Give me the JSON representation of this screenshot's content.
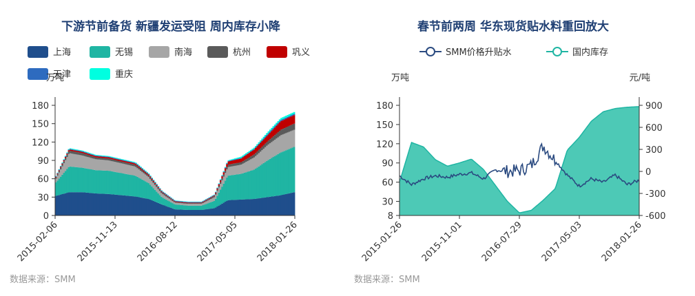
{
  "source_text": "数据来源：SMM",
  "chart_data": [
    {
      "type": "area",
      "stacked": true,
      "title": "下游节前备货 新疆发运受阻 周内库存小降",
      "y_unit": "万吨",
      "ylim": [
        0,
        180
      ],
      "y_ticks": [
        "0",
        "30",
        "60",
        "90",
        "120",
        "150",
        "180"
      ],
      "x_tick_labels": [
        "2015-02-06",
        "2015-11-13",
        "2016-08-12",
        "2017-05-05",
        "2018-01-26"
      ],
      "legend_placement": "top",
      "x": [
        "2015-02",
        "2015-04",
        "2015-06",
        "2015-08",
        "2015-10",
        "2015-12",
        "2016-02",
        "2016-04",
        "2016-06",
        "2016-08",
        "2016-10",
        "2016-12",
        "2017-02",
        "2017-04",
        "2017-06",
        "2017-08",
        "2017-10",
        "2017-12",
        "2018-01-26"
      ],
      "series": [
        {
          "name": "上海",
          "color": "#1f4e8c",
          "values": [
            32,
            38,
            38,
            36,
            35,
            33,
            31,
            27,
            18,
            10,
            9,
            9,
            12,
            25,
            26,
            27,
            30,
            33,
            38
          ]
        },
        {
          "name": "无锡",
          "color": "#1fb5a3",
          "values": [
            22,
            42,
            40,
            38,
            38,
            36,
            34,
            26,
            12,
            8,
            7,
            7,
            12,
            40,
            42,
            48,
            60,
            70,
            74
          ]
        },
        {
          "name": "南海",
          "color": "#a6a6a6",
          "values": [
            6,
            22,
            20,
            18,
            17,
            16,
            15,
            10,
            6,
            3,
            3,
            3,
            6,
            14,
            15,
            20,
            25,
            28,
            28
          ]
        },
        {
          "name": "杭州",
          "color": "#5a5a5a",
          "values": [
            2,
            4,
            4,
            3,
            3,
            3,
            3,
            2,
            2,
            1,
            1,
            1,
            2,
            4,
            4,
            5,
            6,
            9,
            10
          ]
        },
        {
          "name": "巩义",
          "color": "#c00000",
          "values": [
            1,
            2,
            2,
            2,
            2,
            2,
            2,
            2,
            1,
            1,
            1,
            1,
            1,
            5,
            6,
            8,
            10,
            14,
            14
          ]
        },
        {
          "name": "天津",
          "color": "#2e6bbf",
          "values": [
            1,
            1,
            1,
            1,
            1,
            1,
            1,
            1,
            1,
            1,
            1,
            1,
            1,
            1,
            1,
            1,
            2,
            2,
            2
          ]
        },
        {
          "name": "重庆",
          "color": "#00ffe0",
          "values": [
            0.5,
            1,
            1,
            1,
            1,
            1,
            1,
            1,
            0.5,
            0.5,
            0.5,
            0.5,
            0.5,
            1,
            2,
            2,
            3,
            3,
            3
          ]
        }
      ]
    },
    {
      "type": "line",
      "title": "春节前两周 华东现货贴水料重回放大",
      "y_left_unit": "万吨",
      "y_right_unit": "元/吨",
      "ylim_left": [
        8,
        180
      ],
      "ylim_right": [
        -600,
        900
      ],
      "y_left_ticks": [
        "8",
        "30",
        "60",
        "90",
        "120",
        "150",
        "180"
      ],
      "y_right_ticks": [
        "-600",
        "-300",
        "0",
        "300",
        "600",
        "900"
      ],
      "x_tick_labels": [
        "2015-01-26",
        "2015-11-01",
        "2016-07-29",
        "2017-05-03",
        "2018-01-26"
      ],
      "legend_placement": "top",
      "x": [
        "2015-01",
        "2015-02",
        "2015-04",
        "2015-06",
        "2015-08",
        "2015-10",
        "2015-11",
        "2016-01",
        "2016-03",
        "2016-05",
        "2016-07",
        "2016-09",
        "2016-10",
        "2016-12",
        "2017-02",
        "2017-04",
        "2017-06",
        "2017-08",
        "2017-10",
        "2017-12",
        "2018-01-26"
      ],
      "series": [
        {
          "name": "SMM价格升贴水",
          "axis": "right",
          "color": "#2a4a80",
          "values": [
            -60,
            -180,
            -100,
            -60,
            -80,
            -40,
            -20,
            -100,
            20,
            0,
            10,
            80,
            350,
            150,
            -50,
            -200,
            -100,
            -150,
            -50,
            -180,
            -120
          ]
        },
        {
          "name": "国内库存",
          "axis": "left",
          "color": "#1fb5a3",
          "fill": "#4dc9b6",
          "values": [
            60,
            122,
            115,
            95,
            85,
            90,
            96,
            80,
            55,
            30,
            12,
            16,
            32,
            50,
            110,
            130,
            155,
            170,
            175,
            177,
            178
          ]
        }
      ]
    }
  ]
}
